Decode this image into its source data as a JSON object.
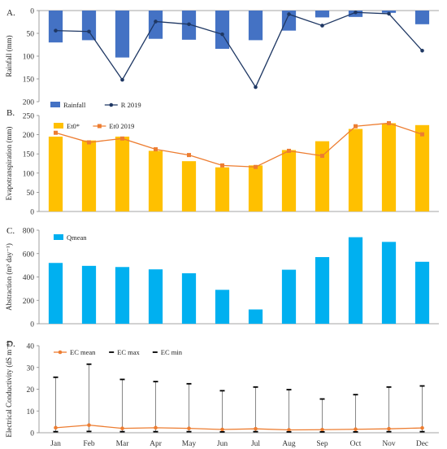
{
  "months": [
    "Jan",
    "Feb",
    "Mar",
    "Apr",
    "May",
    "Jun",
    "Jul",
    "Aug",
    "Sep",
    "Oct",
    "Nov",
    "Dec"
  ],
  "chart_data": [
    {
      "panel": "A.",
      "type": "bar",
      "ylabel": "Rainfall (mm)",
      "ylim": [
        0,
        200
      ],
      "y_inverted": true,
      "yticks": [
        0,
        50,
        100,
        150,
        200
      ],
      "categories": [
        "Jan",
        "Feb",
        "Mar",
        "Apr",
        "May",
        "Jun",
        "Jul",
        "Aug",
        "Sep",
        "Oct",
        "Nov",
        "Dec"
      ],
      "series": [
        {
          "name": "Rainfall",
          "type": "bar",
          "color": "#4472C4",
          "values": [
            70,
            65,
            103,
            62,
            64,
            84,
            65,
            44,
            15,
            14,
            5,
            30
          ]
        },
        {
          "name": "R  2019",
          "type": "line",
          "color": "#1F3864",
          "values": [
            44,
            46,
            152,
            24,
            30,
            52,
            168,
            8,
            33,
            4,
            7,
            88
          ]
        }
      ]
    },
    {
      "panel": "B.",
      "type": "bar",
      "ylabel": "Evapotranspiration (mm)",
      "ylim": [
        0,
        250
      ],
      "yticks": [
        0,
        50,
        100,
        150,
        200,
        250
      ],
      "categories": [
        "Jan",
        "Feb",
        "Mar",
        "Apr",
        "May",
        "Jun",
        "Jul",
        "Aug",
        "Sep",
        "Oct",
        "Nov",
        "Dec"
      ],
      "series": [
        {
          "name": "Et0*",
          "type": "bar",
          "color": "#FFC000",
          "values": [
            195,
            185,
            195,
            158,
            131,
            115,
            120,
            160,
            183,
            215,
            230,
            225
          ]
        },
        {
          "name": "Et0 2019",
          "type": "line",
          "color": "#ED7D31",
          "values": [
            205,
            180,
            190,
            162,
            147,
            120,
            116,
            158,
            145,
            222,
            230,
            201
          ]
        }
      ]
    },
    {
      "panel": "C.",
      "type": "bar",
      "ylabel": "Abstraction (m³ day⁻¹)",
      "ylim": [
        0,
        800
      ],
      "yticks": [
        0,
        200,
        400,
        600,
        800
      ],
      "categories": [
        "Jan",
        "Feb",
        "Mar",
        "Apr",
        "May",
        "Jun",
        "Jul",
        "Aug",
        "Sep",
        "Oct",
        "Nov",
        "Dec"
      ],
      "series": [
        {
          "name": "Qmean",
          "type": "bar",
          "color": "#00B0F0",
          "values": [
            520,
            495,
            485,
            465,
            432,
            290,
            122,
            462,
            570,
            740,
            700,
            530
          ]
        }
      ]
    },
    {
      "panel": "D.",
      "type": "line",
      "ylabel": "Electrical Conductivity (dS m⁻¹)",
      "ylim": [
        0,
        40
      ],
      "yticks": [
        0,
        10,
        20,
        30,
        40
      ],
      "categories": [
        "Jan",
        "Feb",
        "Mar",
        "Apr",
        "May",
        "Jun",
        "Jul",
        "Aug",
        "Sep",
        "Oct",
        "Nov",
        "Dec"
      ],
      "series": [
        {
          "name": "EC mean",
          "type": "line",
          "color": "#ED7D31",
          "values": [
            2.3,
            3.5,
            2.0,
            2.3,
            2.0,
            1.5,
            1.8,
            1.3,
            1.4,
            1.6,
            1.8,
            2.2
          ]
        },
        {
          "name": "EC max",
          "type": "marker",
          "color": "#000000",
          "values": [
            25.5,
            31.5,
            24.5,
            23.5,
            22.5,
            19.3,
            21.0,
            19.8,
            15.5,
            17.5,
            21.0,
            21.5
          ]
        },
        {
          "name": "EC min",
          "type": "marker",
          "color": "#000000",
          "values": [
            0.5,
            0.6,
            0.5,
            0.5,
            0.5,
            0.4,
            0.5,
            0.4,
            0.4,
            0.4,
            0.5,
            0.5
          ]
        }
      ]
    }
  ]
}
